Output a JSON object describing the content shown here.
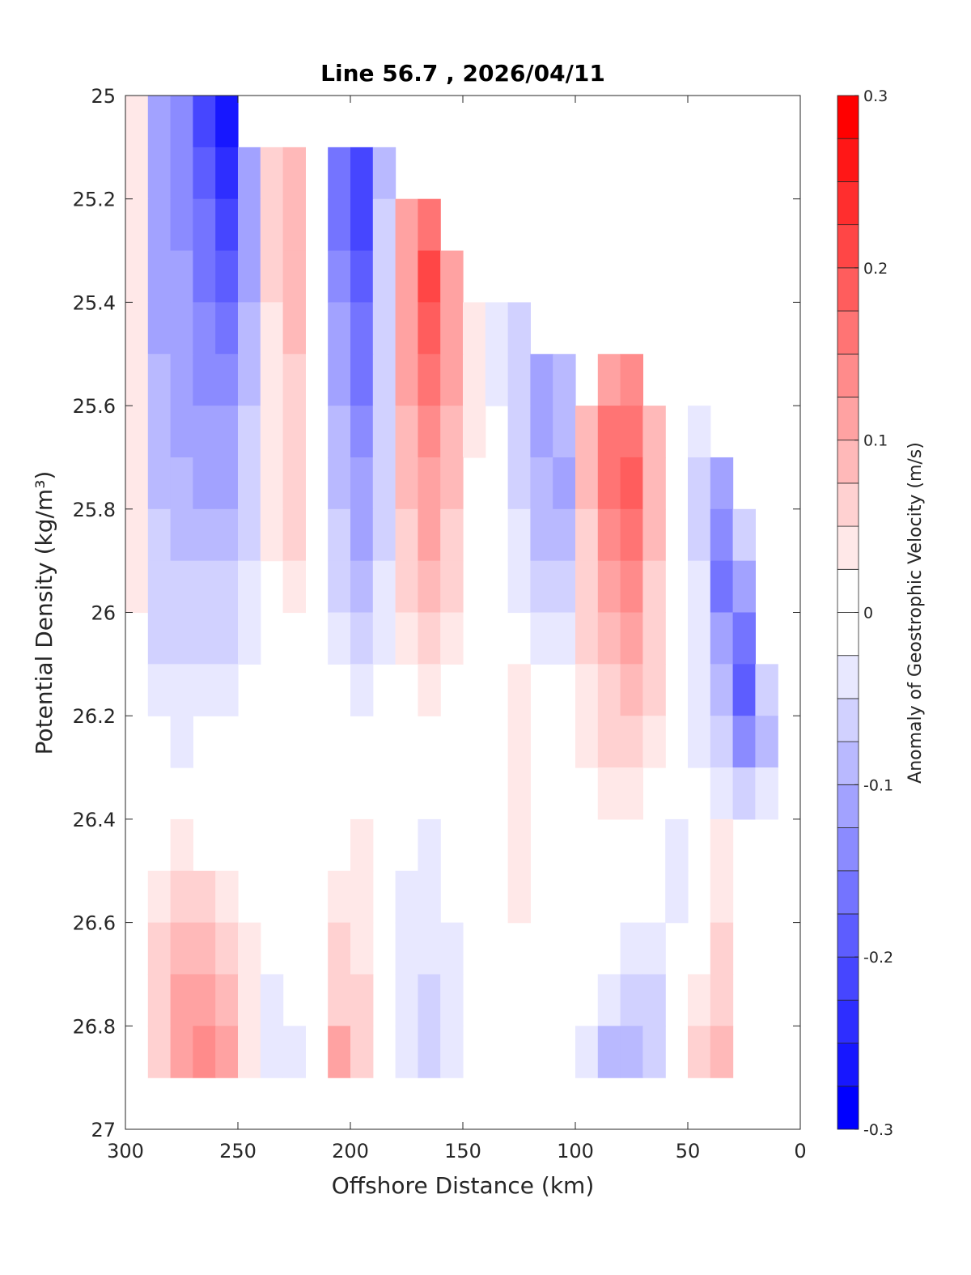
{
  "chart_data": {
    "type": "heatmap",
    "title": "Line 56.7 , 2026/04/11",
    "xlabel": "Offshore Distance (km)",
    "ylabel": "Potential Density (kg/m³)",
    "xlim": [
      300,
      0
    ],
    "ylim": [
      27,
      25
    ],
    "x_reversed": true,
    "y_reversed": true,
    "x_ticks": [
      "300",
      "250",
      "200",
      "150",
      "100",
      "50",
      "0"
    ],
    "x_tick_values": [
      300,
      250,
      200,
      150,
      100,
      50,
      0
    ],
    "y_ticks": [
      "25",
      "25.2",
      "25.4",
      "25.6",
      "25.8",
      "26",
      "26.2",
      "26.4",
      "26.6",
      "26.8",
      "27"
    ],
    "y_tick_values": [
      25,
      25.2,
      25.4,
      25.6,
      25.8,
      26,
      26.2,
      26.4,
      26.6,
      26.8,
      27
    ],
    "colorbar": {
      "label": "Anomaly of Geostrophic Velocity (m/s)",
      "range": [
        -0.3,
        0.3
      ],
      "step": 0.025,
      "ticks": [
        "0.3",
        "0.2",
        "0.1",
        "0",
        "-0.1",
        "-0.2",
        "-0.3"
      ],
      "tick_values": [
        0.3,
        0.2,
        0.1,
        0,
        -0.1,
        -0.2,
        -0.3
      ],
      "colormap": "blue-white-red",
      "positive_color": "#ff0000",
      "negative_color": "#0000ff",
      "zero_color": "#ffffff"
    },
    "grid": false,
    "distance_km": [
      295,
      285,
      275,
      265,
      255,
      245,
      235,
      225,
      215,
      205,
      195,
      185,
      175,
      165,
      155,
      145,
      135,
      125,
      115,
      105,
      95,
      85,
      75,
      65,
      55,
      45,
      35,
      25,
      15,
      5
    ],
    "density": [
      25.05,
      25.15,
      25.25,
      25.35,
      25.45,
      25.55,
      25.65,
      25.75,
      25.85,
      25.95,
      26.05,
      26.15,
      26.25,
      26.35,
      26.45,
      26.55,
      26.65,
      26.75,
      26.85,
      26.95
    ],
    "values": [
      [
        0.03,
        -0.1,
        -0.14,
        -0.2,
        -0.25,
        null,
        null,
        null,
        null,
        null,
        null,
        null,
        null,
        null,
        null,
        null,
        null,
        null,
        null,
        null,
        null,
        null,
        null,
        null,
        null,
        null,
        null,
        null,
        null,
        null
      ],
      [
        0.03,
        -0.1,
        -0.13,
        -0.18,
        -0.24,
        -0.12,
        0.05,
        0.08,
        0.02,
        -0.15,
        -0.22,
        -0.08,
        null,
        null,
        null,
        null,
        null,
        null,
        null,
        null,
        null,
        null,
        null,
        null,
        null,
        null,
        null,
        null,
        null,
        null
      ],
      [
        0.03,
        -0.1,
        -0.13,
        -0.16,
        -0.2,
        -0.1,
        0.05,
        0.08,
        0.02,
        -0.15,
        -0.2,
        -0.07,
        0.1,
        0.16,
        null,
        null,
        null,
        null,
        null,
        null,
        null,
        null,
        null,
        null,
        null,
        null,
        null,
        null,
        null,
        null
      ],
      [
        0.03,
        -0.1,
        -0.12,
        -0.15,
        -0.18,
        -0.1,
        0.05,
        0.08,
        0.02,
        -0.14,
        -0.19,
        -0.07,
        0.12,
        0.2,
        0.1,
        null,
        null,
        null,
        null,
        null,
        null,
        null,
        null,
        null,
        null,
        null,
        null,
        null,
        null,
        null
      ],
      [
        0.03,
        -0.1,
        -0.12,
        -0.14,
        -0.15,
        -0.08,
        0.04,
        0.08,
        0.02,
        -0.12,
        -0.17,
        -0.06,
        0.12,
        0.18,
        0.1,
        0.03,
        -0.03,
        -0.05,
        null,
        null,
        null,
        null,
        null,
        null,
        null,
        null,
        null,
        null,
        null,
        null
      ],
      [
        0.03,
        -0.09,
        -0.11,
        -0.13,
        -0.13,
        -0.08,
        0.04,
        0.07,
        0.02,
        -0.1,
        -0.15,
        -0.06,
        0.11,
        0.16,
        0.1,
        0.03,
        -0.03,
        -0.07,
        -0.1,
        -0.08,
        null,
        0.12,
        0.14,
        null,
        null,
        null,
        null,
        null,
        null,
        null
      ],
      [
        0.03,
        -0.08,
        -0.1,
        -0.11,
        -0.11,
        -0.07,
        0.03,
        0.06,
        0.02,
        -0.09,
        -0.13,
        -0.06,
        0.09,
        0.14,
        0.09,
        0.03,
        -0.02,
        -0.06,
        -0.1,
        -0.08,
        0.08,
        0.15,
        0.16,
        0.08,
        0.02,
        -0.03,
        null,
        null,
        null,
        null
      ],
      [
        0.03,
        -0.08,
        -0.09,
        -0.1,
        -0.1,
        -0.06,
        0.03,
        0.06,
        0.02,
        -0.08,
        -0.12,
        -0.05,
        0.08,
        0.12,
        0.08,
        0.02,
        -0.02,
        -0.05,
        -0.09,
        -0.1,
        0.08,
        0.15,
        0.18,
        0.08,
        0.02,
        -0.06,
        -0.1,
        null,
        null,
        null
      ],
      [
        0.03,
        -0.07,
        -0.08,
        -0.09,
        -0.08,
        -0.05,
        0.03,
        0.05,
        0.02,
        -0.07,
        -0.1,
        -0.05,
        0.07,
        0.1,
        0.07,
        0.02,
        -0.02,
        -0.04,
        -0.08,
        -0.08,
        0.07,
        0.13,
        0.16,
        0.08,
        0.02,
        -0.05,
        -0.14,
        -0.05,
        null,
        null
      ],
      [
        0.03,
        -0.06,
        -0.06,
        -0.07,
        -0.06,
        -0.04,
        0.02,
        0.03,
        0.01,
        -0.05,
        -0.08,
        -0.04,
        0.05,
        0.08,
        0.06,
        0.02,
        -0.01,
        -0.03,
        -0.06,
        -0.05,
        0.06,
        0.11,
        0.13,
        0.07,
        0.02,
        -0.04,
        -0.15,
        -0.1,
        null,
        null
      ],
      [
        0.01,
        -0.05,
        -0.05,
        -0.06,
        -0.05,
        -0.03,
        0.01,
        0.01,
        0.01,
        -0.04,
        -0.06,
        -0.03,
        0.04,
        0.06,
        0.04,
        0.01,
        -0.01,
        -0.02,
        -0.04,
        -0.04,
        0.05,
        0.09,
        0.11,
        0.06,
        0.01,
        -0.04,
        -0.12,
        -0.16,
        null,
        null
      ],
      [
        0,
        -0.04,
        -0.04,
        -0.04,
        -0.03,
        -0.02,
        0,
        0,
        0,
        -0.02,
        -0.04,
        -0.02,
        0.02,
        0.03,
        0.02,
        0.01,
        0,
        0.03,
        -0.02,
        -0.02,
        0.04,
        0.07,
        0.09,
        0.05,
        0.01,
        -0.03,
        -0.08,
        -0.18,
        -0.05,
        null
      ],
      [
        0,
        -0.02,
        -0.03,
        -0.02,
        -0.01,
        -0.01,
        0,
        0,
        0,
        0,
        -0.01,
        0,
        0,
        0.01,
        0,
        0,
        0,
        0.04,
        0,
        0,
        0.03,
        0.05,
        0.07,
        0.04,
        0.01,
        -0.03,
        -0.06,
        -0.14,
        -0.08,
        null
      ],
      [
        0,
        0,
        0,
        0,
        0,
        0,
        0,
        0,
        0,
        0,
        0,
        0,
        0,
        0,
        0,
        0,
        0,
        0.03,
        0,
        0,
        0.01,
        0.03,
        0.04,
        0.02,
        0,
        -0.02,
        -0.03,
        -0.06,
        -0.04,
        null
      ],
      [
        0,
        0.02,
        0.03,
        0.02,
        0.01,
        0,
        0,
        0,
        0.01,
        0.02,
        0.03,
        0,
        -0.02,
        -0.03,
        -0.01,
        0,
        0,
        0.03,
        0,
        0,
        0,
        0,
        0,
        -0.02,
        -0.03,
        0,
        0.03,
        null,
        null,
        null
      ],
      [
        0,
        0.04,
        0.06,
        0.05,
        0.04,
        0.02,
        0,
        0,
        0.02,
        0.03,
        0.03,
        0,
        -0.03,
        -0.04,
        -0.02,
        0,
        0,
        0.03,
        0.02,
        0,
        0,
        0,
        -0.01,
        -0.02,
        -0.03,
        0,
        0.04,
        null,
        null,
        null
      ],
      [
        0,
        0.05,
        0.08,
        0.08,
        0.06,
        0.03,
        -0.02,
        -0.01,
        0,
        0.05,
        0.04,
        0,
        -0.03,
        -0.04,
        -0.03,
        0,
        0,
        0,
        0,
        0,
        0,
        -0.02,
        -0.03,
        -0.03,
        -0.02,
        0.02,
        0.05,
        null,
        null,
        null
      ],
      [
        -0.02,
        0.06,
        0.1,
        0.11,
        0.08,
        0.03,
        -0.03,
        -0.02,
        0,
        0.07,
        0.05,
        0,
        -0.04,
        -0.06,
        -0.03,
        0,
        0,
        0,
        0,
        0,
        0,
        -0.04,
        -0.06,
        -0.05,
        -0.02,
        0.03,
        0.06,
        null,
        null,
        null
      ],
      [
        null,
        0.05,
        0.12,
        0.14,
        0.1,
        0.04,
        -0.03,
        -0.03,
        0,
        0.1,
        0.06,
        0,
        -0.04,
        -0.07,
        -0.03,
        0,
        0,
        0,
        0,
        0,
        -0.03,
        -0.08,
        -0.08,
        -0.05,
        null,
        0.06,
        0.08,
        null,
        null,
        null
      ],
      [
        null,
        null,
        null,
        null,
        null,
        null,
        null,
        null,
        null,
        null,
        null,
        null,
        null,
        null,
        null,
        null,
        null,
        null,
        null,
        null,
        null,
        null,
        null,
        null,
        null,
        null,
        null,
        null,
        null,
        null
      ]
    ]
  }
}
